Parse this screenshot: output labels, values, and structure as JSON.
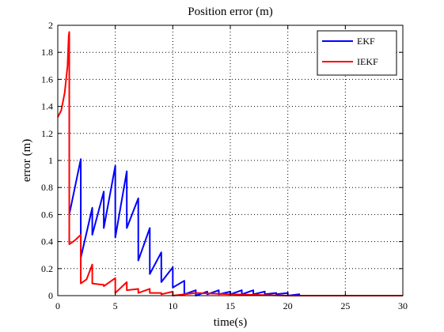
{
  "chart_data": {
    "type": "line",
    "title": "Position error (m)",
    "xlabel": "time(s)",
    "ylabel": "error (m)",
    "xlim": [
      0,
      30
    ],
    "ylim": [
      0,
      2
    ],
    "xticks": [
      0,
      5,
      10,
      15,
      20,
      25,
      30
    ],
    "yticks": [
      0,
      0.2,
      0.4,
      0.6,
      0.8,
      1,
      1.2,
      1.4,
      1.6,
      1.8,
      2
    ],
    "grid": true,
    "legend_position": "top-right",
    "series": [
      {
        "name": "EKF",
        "color": "#0000ff",
        "points": [
          [
            1.0,
            0.6
          ],
          [
            2.0,
            1.01
          ],
          [
            2.0,
            0.28
          ],
          [
            3.0,
            0.65
          ],
          [
            3.0,
            0.45
          ],
          [
            4.0,
            0.77
          ],
          [
            4.0,
            0.5
          ],
          [
            5.0,
            0.96
          ],
          [
            5.0,
            0.43
          ],
          [
            6.0,
            0.92
          ],
          [
            6.0,
            0.5
          ],
          [
            7.0,
            0.72
          ],
          [
            7.0,
            0.26
          ],
          [
            8.0,
            0.5
          ],
          [
            8.0,
            0.16
          ],
          [
            9.0,
            0.32
          ],
          [
            9.0,
            0.1
          ],
          [
            10.0,
            0.21
          ],
          [
            10.0,
            0.06
          ],
          [
            11.0,
            0.11
          ],
          [
            11.0,
            0.01
          ],
          [
            12.0,
            0.04
          ],
          [
            12.0,
            0.0
          ],
          [
            13.0,
            0.03
          ],
          [
            13.0,
            0.01
          ],
          [
            14.0,
            0.04
          ],
          [
            14.0,
            0.01
          ],
          [
            15.0,
            0.03
          ],
          [
            15.0,
            0.01
          ],
          [
            16.0,
            0.04
          ],
          [
            16.0,
            0.01
          ],
          [
            17.0,
            0.04
          ],
          [
            17.0,
            0.01
          ],
          [
            18.0,
            0.03
          ],
          [
            18.0,
            0.01
          ],
          [
            19.0,
            0.02
          ],
          [
            19.0,
            0.01
          ],
          [
            20.0,
            0.02
          ],
          [
            20.0,
            0.0
          ],
          [
            21.0,
            0.01
          ],
          [
            21.0,
            0.0
          ],
          [
            30.0,
            0.0
          ]
        ]
      },
      {
        "name": "IEKF",
        "color": "#ff0000",
        "points": [
          [
            0.0,
            1.32
          ],
          [
            0.3,
            1.37
          ],
          [
            0.6,
            1.5
          ],
          [
            0.85,
            1.7
          ],
          [
            0.95,
            1.92
          ],
          [
            1.0,
            1.95
          ],
          [
            1.0,
            0.38
          ],
          [
            1.5,
            0.41
          ],
          [
            2.0,
            0.45
          ],
          [
            2.0,
            0.09
          ],
          [
            2.5,
            0.12
          ],
          [
            3.0,
            0.23
          ],
          [
            3.0,
            0.09
          ],
          [
            4.0,
            0.08
          ],
          [
            4.0,
            0.07
          ],
          [
            5.0,
            0.13
          ],
          [
            5.0,
            0.02
          ],
          [
            6.0,
            0.1
          ],
          [
            6.0,
            0.04
          ],
          [
            7.0,
            0.05
          ],
          [
            7.0,
            0.02
          ],
          [
            8.0,
            0.05
          ],
          [
            8.0,
            0.02
          ],
          [
            9.0,
            0.02
          ],
          [
            9.0,
            0.01
          ],
          [
            10.0,
            0.03
          ],
          [
            10.0,
            0.0
          ],
          [
            12.0,
            0.02
          ],
          [
            15.0,
            0.01
          ],
          [
            20.0,
            0.0
          ],
          [
            30.0,
            0.0
          ]
        ]
      }
    ]
  }
}
